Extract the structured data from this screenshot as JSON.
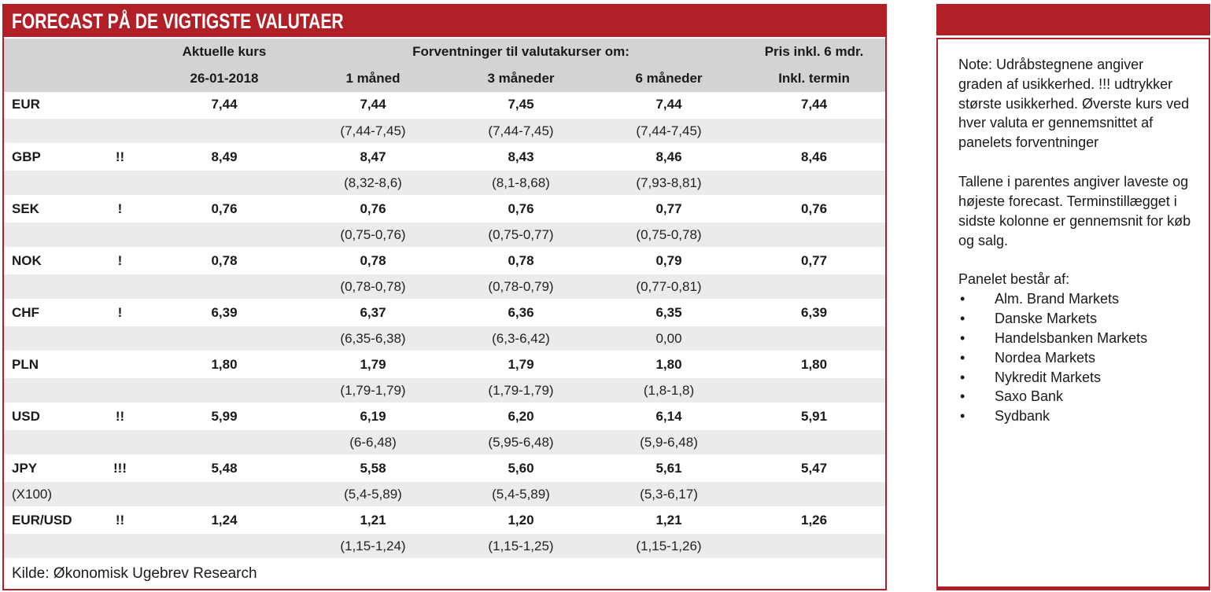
{
  "colors": {
    "accent_red": "#b02026",
    "header_gray": "#d3d3d6",
    "range_row_gray": "#ebebed"
  },
  "title": "FORECAST PÅ DE VIGTIGSTE VALUTAER",
  "table": {
    "header": {
      "aktuelle_kurs": "Aktuelle kurs",
      "date": "26-01-2018",
      "forventninger": "Forventninger til valutakurser om:",
      "col_1m": "1 måned",
      "col_3m": "3 måneder",
      "col_6m": "6 måneder",
      "pris_line1": "Pris inkl. 6 mdr.",
      "pris_line2": "Inkl. termin"
    },
    "rows": [
      {
        "currency": "EUR",
        "uncertainty": "",
        "sub": "",
        "current": "7,44",
        "m1": "7,44",
        "m1_range": "(7,44-7,45)",
        "m3": "7,45",
        "m3_range": "(7,44-7,45)",
        "m6": "7,44",
        "m6_range": "(7,44-7,45)",
        "termin": "7,44"
      },
      {
        "currency": "GBP",
        "uncertainty": "!!",
        "sub": "",
        "current": "8,49",
        "m1": "8,47",
        "m1_range": "(8,32-8,6)",
        "m3": "8,43",
        "m3_range": "(8,1-8,68)",
        "m6": "8,46",
        "m6_range": "(7,93-8,81)",
        "termin": "8,46"
      },
      {
        "currency": "SEK",
        "uncertainty": "!",
        "sub": "",
        "current": "0,76",
        "m1": "0,76",
        "m1_range": "(0,75-0,76)",
        "m3": "0,76",
        "m3_range": "(0,75-0,77)",
        "m6": "0,77",
        "m6_range": "(0,75-0,78)",
        "termin": "0,76"
      },
      {
        "currency": "NOK",
        "uncertainty": "!",
        "sub": "",
        "current": "0,78",
        "m1": "0,78",
        "m1_range": "(0,78-0,78)",
        "m3": "0,78",
        "m3_range": "(0,78-0,79)",
        "m6": "0,79",
        "m6_range": "(0,77-0,81)",
        "termin": "0,77"
      },
      {
        "currency": "CHF",
        "uncertainty": "!",
        "sub": "",
        "current": "6,39",
        "m1": "6,37",
        "m1_range": "(6,35-6,38)",
        "m3": "6,36",
        "m3_range": "(6,3-6,42)",
        "m6": "6,35",
        "m6_range": "0,00",
        "termin": "6,39"
      },
      {
        "currency": "PLN",
        "uncertainty": "",
        "sub": "",
        "current": "1,80",
        "m1": "1,79",
        "m1_range": "(1,79-1,79)",
        "m3": "1,79",
        "m3_range": "(1,79-1,79)",
        "m6": "1,80",
        "m6_range": "(1,8-1,8)",
        "termin": "1,80"
      },
      {
        "currency": "USD",
        "uncertainty": "!!",
        "sub": "",
        "current": "5,99",
        "m1": "6,19",
        "m1_range": "(6-6,48)",
        "m3": "6,20",
        "m3_range": "(5,95-6,48)",
        "m6": "6,14",
        "m6_range": "(5,9-6,48)",
        "termin": "5,91"
      },
      {
        "currency": "JPY",
        "uncertainty": "!!!",
        "sub": "(X100)",
        "current": "5,48",
        "m1": "5,58",
        "m1_range": "(5,4-5,89)",
        "m3": "5,60",
        "m3_range": "(5,4-5,89)",
        "m6": "5,61",
        "m6_range": "(5,3-6,17)",
        "termin": "5,47"
      },
      {
        "currency": "EUR/USD",
        "uncertainty": "!!",
        "sub": "",
        "current": "1,24",
        "m1": "1,21",
        "m1_range": "(1,15-1,24)",
        "m3": "1,20",
        "m3_range": "(1,15-1,25)",
        "m6": "1,21",
        "m6_range": "(1,15-1,26)",
        "termin": "1,26"
      }
    ],
    "source": "Kilde: Økonomisk Ugebrev Research"
  },
  "note": {
    "paragraph1": "Note: Udråbstegnene angiver graden af usikkerhed. !!! udtrykker største usikkerhed. Øverste kurs ved hver valuta er gennemsnittet af panelets forventninger",
    "paragraph2": "Tallene i parentes angiver laveste og højeste forecast. Terminstillægget i sidste kolonne er gennemsnit for køb og salg.",
    "panel_heading": "Panelet består af:",
    "bullet_char": "•",
    "panel_members": [
      "Alm. Brand Markets",
      "Danske Markets",
      "Handelsbanken Markets",
      "Nordea Markets",
      "Nykredit Markets",
      "Saxo Bank",
      "Sydbank"
    ]
  }
}
